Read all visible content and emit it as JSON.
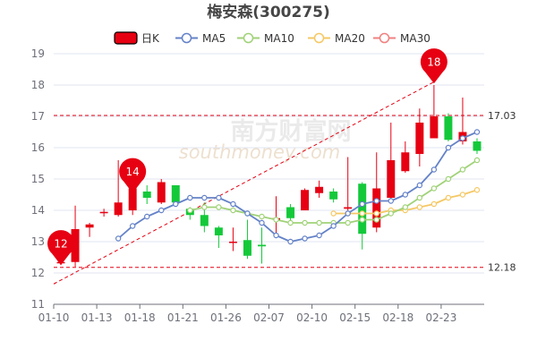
{
  "chart_data": {
    "type": "candlestick",
    "title": "梅安森(300275)",
    "watermark": {
      "cn": "南方财富网",
      "en": "southmoney.com"
    },
    "legend": [
      {
        "name": "日K",
        "color": "#e60012"
      },
      {
        "name": "MA5",
        "color": "#6482c8"
      },
      {
        "name": "MA10",
        "color": "#a0d278"
      },
      {
        "name": "MA20",
        "color": "#f5c864"
      },
      {
        "name": "MA30",
        "color": "#f08080"
      }
    ],
    "colors": {
      "up": "#e60012",
      "down": "#13c93a",
      "grid": "#e0e6f1",
      "refline": "#e60012",
      "pin": "#e60012"
    },
    "ylim": [
      11,
      19
    ],
    "yticks": [
      11,
      12,
      13,
      14,
      15,
      16,
      17,
      18,
      19
    ],
    "x": [
      "01-10",
      "01-11",
      "01-12",
      "01-13",
      "01-14",
      "01-17",
      "01-18",
      "01-19",
      "01-20",
      "01-21",
      "01-24",
      "01-25",
      "01-26",
      "01-27",
      "01-28",
      "02-07",
      "02-08",
      "02-09",
      "02-10",
      "02-11",
      "02-14",
      "02-15",
      "02-16",
      "02-17",
      "02-18",
      "02-21",
      "02-22",
      "02-23",
      "02-24",
      "02-25"
    ],
    "xtick_labels": [
      "01-10",
      "01-13",
      "01-18",
      "01-21",
      "01-26",
      "02-07",
      "02-10",
      "02-15",
      "02-18",
      "02-23"
    ],
    "candles": [
      [
        12.35,
        12.35,
        12.25,
        12.45
      ],
      [
        12.35,
        13.4,
        12.2,
        14.15
      ],
      [
        13.45,
        13.55,
        13.15,
        13.6
      ],
      [
        13.95,
        13.95,
        13.8,
        14.05
      ],
      [
        13.85,
        14.25,
        13.8,
        15.6
      ],
      [
        14.0,
        14.7,
        13.85,
        14.8
      ],
      [
        14.6,
        14.4,
        14.2,
        14.8
      ],
      [
        14.25,
        14.9,
        14.2,
        15.0
      ],
      [
        14.8,
        14.25,
        14.2,
        14.8
      ],
      [
        14.05,
        13.85,
        13.7,
        14.1
      ],
      [
        13.85,
        13.5,
        13.3,
        14.25
      ],
      [
        13.45,
        13.2,
        12.8,
        13.5
      ],
      [
        13.0,
        13.0,
        12.7,
        13.45
      ],
      [
        13.05,
        12.55,
        12.45,
        13.7
      ],
      [
        12.9,
        12.85,
        12.3,
        13.45
      ],
      [
        13.7,
        13.75,
        13.2,
        14.45
      ],
      [
        14.1,
        13.75,
        13.55,
        14.2
      ],
      [
        14.0,
        14.65,
        14.0,
        14.7
      ],
      [
        14.55,
        14.75,
        14.4,
        14.95
      ],
      [
        14.6,
        14.35,
        14.25,
        14.7
      ],
      [
        14.05,
        14.1,
        14.0,
        15.7
      ],
      [
        14.85,
        13.25,
        12.75,
        14.9
      ],
      [
        13.45,
        14.7,
        13.3,
        15.85
      ],
      [
        14.4,
        15.6,
        14.3,
        16.8
      ],
      [
        15.25,
        15.85,
        15.2,
        16.2
      ],
      [
        15.8,
        16.8,
        15.4,
        17.25
      ],
      [
        16.3,
        17.0,
        16.3,
        18.0
      ],
      [
        17.0,
        16.25,
        16.2,
        17.1
      ],
      [
        16.2,
        16.5,
        16.1,
        17.6
      ],
      [
        16.2,
        15.9,
        15.8,
        16.3
      ]
    ],
    "ma5": [
      null,
      null,
      null,
      null,
      13.1,
      13.5,
      13.8,
      14.0,
      14.2,
      14.4,
      14.4,
      14.4,
      14.2,
      13.9,
      13.6,
      13.2,
      13.0,
      13.1,
      13.2,
      13.5,
      13.9,
      14.2,
      14.3,
      14.3,
      14.5,
      14.8,
      15.3,
      16.0,
      16.3,
      16.5
    ],
    "ma10": [
      null,
      null,
      null,
      null,
      null,
      null,
      null,
      null,
      null,
      14.0,
      14.1,
      14.1,
      14.0,
      13.9,
      13.8,
      13.7,
      13.6,
      13.6,
      13.6,
      13.6,
      13.6,
      13.7,
      13.7,
      13.9,
      14.1,
      14.4,
      14.7,
      15.0,
      15.3,
      15.6
    ],
    "ma20": [
      null,
      null,
      null,
      null,
      null,
      null,
      null,
      null,
      null,
      null,
      null,
      null,
      null,
      null,
      null,
      null,
      null,
      null,
      null,
      13.9,
      13.9,
      13.9,
      13.9,
      14.0,
      14.0,
      14.1,
      14.2,
      14.4,
      14.5,
      14.65
    ],
    "ma30": [],
    "ref_lines": [
      {
        "value": 17.03,
        "label": "17.03"
      },
      {
        "value": 12.18,
        "label": "12.18"
      }
    ],
    "trend_line": {
      "from": [
        "01-10",
        11.65
      ],
      "to": [
        "02-22",
        18.1
      ]
    },
    "pins": [
      {
        "label": "12",
        "x": "01-10",
        "y": 12.25
      },
      {
        "label": "14",
        "x": "01-17",
        "y": 14.55
      },
      {
        "label": "18",
        "x": "02-22",
        "y": 18.05
      }
    ]
  }
}
